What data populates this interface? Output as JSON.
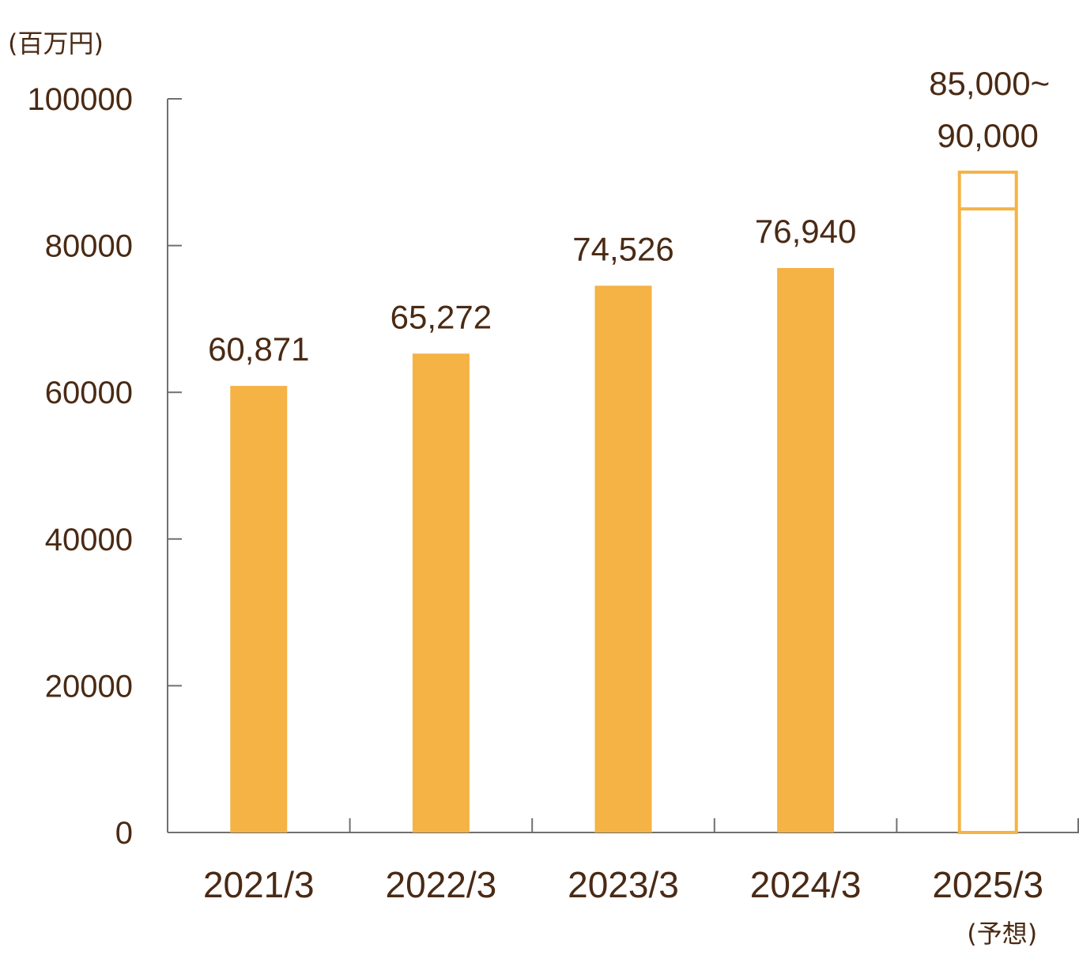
{
  "chart_data": {
    "type": "bar",
    "unit_label": "(百万円)",
    "categories": [
      "2021/3",
      "2022/3",
      "2023/3",
      "2024/3",
      "2025/3"
    ],
    "category_notes": [
      "",
      "",
      "",
      "",
      "(予想)"
    ],
    "values": [
      60871,
      65272,
      74526,
      76940,
      null
    ],
    "value_labels": [
      "60,871",
      "65,272",
      "74,526",
      "76,940",
      ""
    ],
    "forecast": {
      "category": "2025/3",
      "low": 85000,
      "high": 90000,
      "label_line1": "85,000~",
      "label_line2": "90,000"
    },
    "yticks": [
      "0",
      "20000",
      "40000",
      "60000",
      "80000",
      "100000"
    ],
    "ylim": [
      0,
      100000
    ],
    "grid": false,
    "colors": {
      "bar": "#F5B245",
      "axis": "#707070",
      "text": "#4A2A14"
    }
  }
}
